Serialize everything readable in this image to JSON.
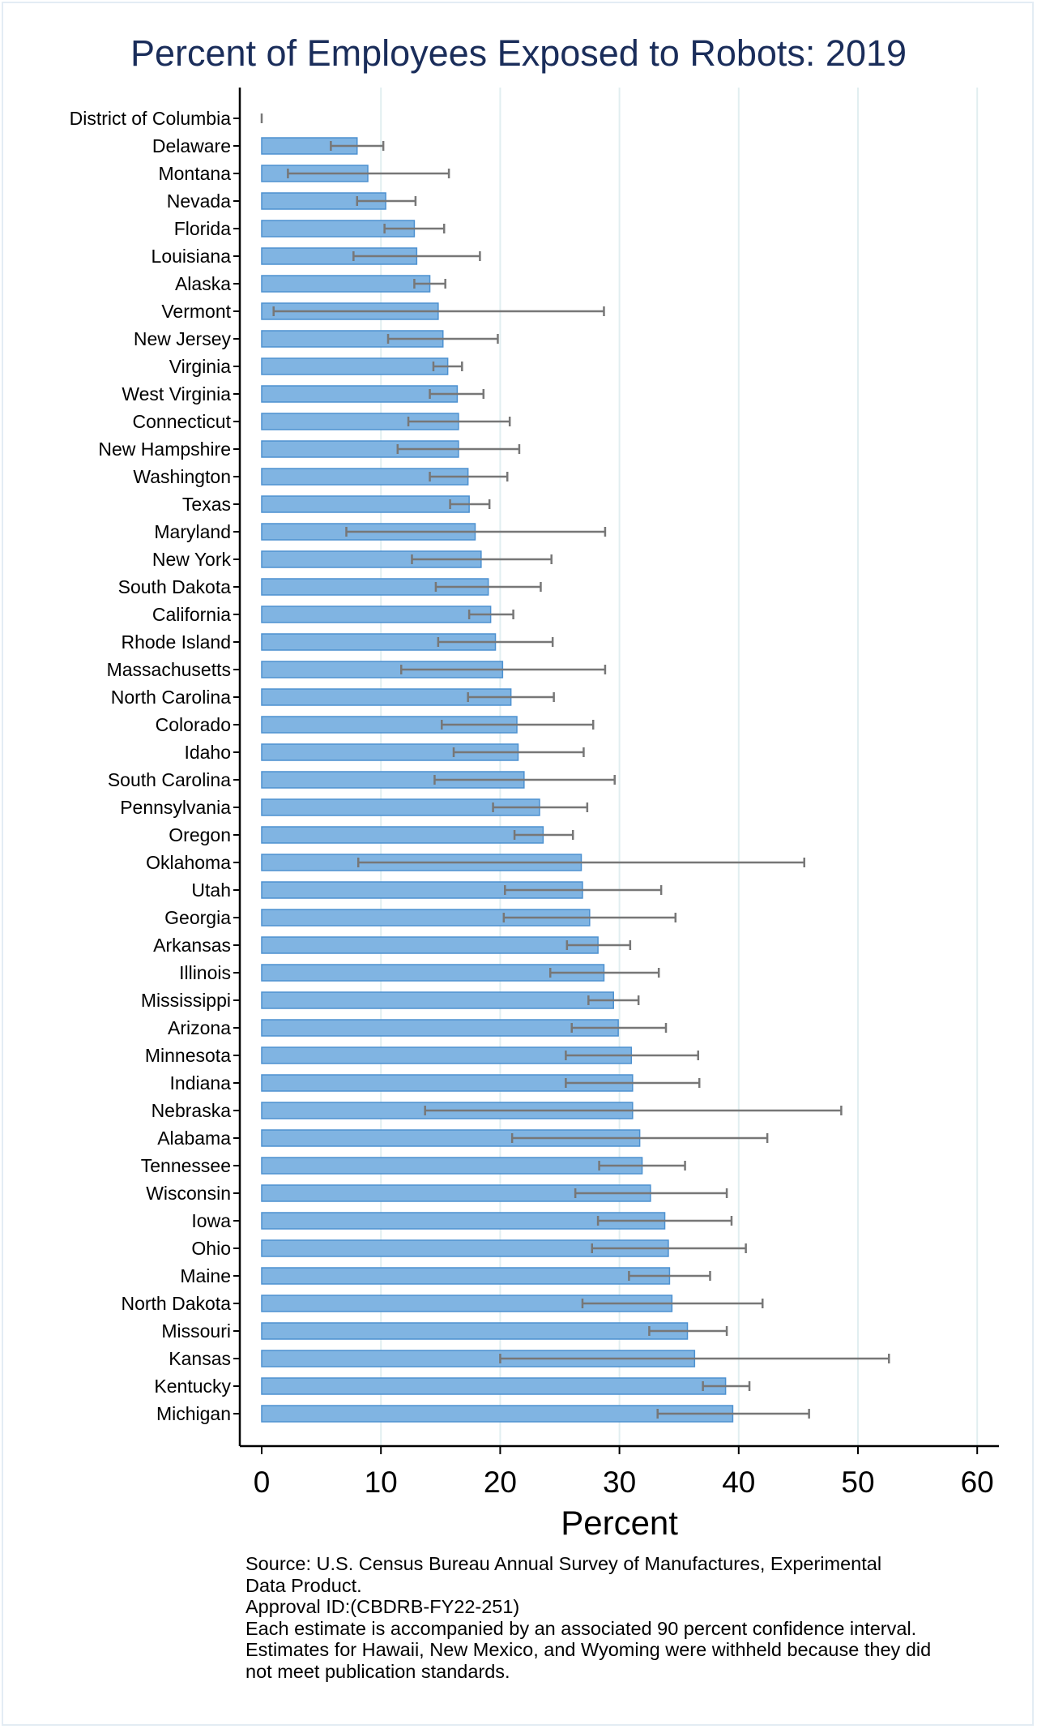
{
  "chart_data": {
    "type": "bar",
    "orientation": "horizontal",
    "title": "Percent of Employees Exposed to Robots: 2019",
    "xlabel": "Percent",
    "ylabel": "",
    "xlim": [
      0,
      60
    ],
    "xticks": [
      0,
      10,
      20,
      30,
      40,
      50,
      60
    ],
    "grid": true,
    "colors": {
      "bar": "#80b4e2",
      "bar_edge": "#4d91d0",
      "error": "#777777",
      "grid": "#e1eef0",
      "title": "#1a2d5a"
    },
    "categories": [
      "District of Columbia",
      "Delaware",
      "Montana",
      "Nevada",
      "Florida",
      "Louisiana",
      "Alaska",
      "Vermont",
      "New Jersey",
      "Virginia",
      "West Virginia",
      "Connecticut",
      "New Hampshire",
      "Washington",
      "Texas",
      "Maryland",
      "New York",
      "South Dakota",
      "California",
      "Rhode Island",
      "Massachusetts",
      "North Carolina",
      "Colorado",
      "Idaho",
      "South Carolina",
      "Pennsylvania",
      "Oregon",
      "Oklahoma",
      "Utah",
      "Georgia",
      "Arkansas",
      "Illinois",
      "Mississippi",
      "Arizona",
      "Minnesota",
      "Indiana",
      "Nebraska",
      "Alabama",
      "Tennessee",
      "Wisconsin",
      "Iowa",
      "Ohio",
      "Maine",
      "North Dakota",
      "Missouri",
      "Kansas",
      "Kentucky",
      "Michigan"
    ],
    "values": [
      0,
      8.0,
      8.9,
      10.4,
      12.8,
      13.0,
      14.1,
      14.8,
      15.2,
      15.6,
      16.4,
      16.5,
      16.5,
      17.3,
      17.4,
      17.9,
      18.4,
      19.0,
      19.2,
      19.6,
      20.2,
      20.9,
      21.4,
      21.5,
      22.0,
      23.3,
      23.6,
      26.8,
      26.9,
      27.5,
      28.2,
      28.7,
      29.5,
      29.9,
      31.0,
      31.1,
      31.1,
      31.7,
      31.9,
      32.6,
      33.8,
      34.1,
      34.2,
      34.4,
      35.7,
      36.3,
      38.9,
      39.5
    ],
    "ci_lower": [
      0,
      5.8,
      2.2,
      8.0,
      10.3,
      7.7,
      12.8,
      1.0,
      10.6,
      14.4,
      14.1,
      12.3,
      11.4,
      14.1,
      15.8,
      7.1,
      12.6,
      14.6,
      17.4,
      14.8,
      11.7,
      17.3,
      15.1,
      16.1,
      14.5,
      19.4,
      21.2,
      8.1,
      20.4,
      20.3,
      25.6,
      24.2,
      27.4,
      26.0,
      25.5,
      25.5,
      13.7,
      21.0,
      28.3,
      26.3,
      28.2,
      27.7,
      30.8,
      26.9,
      32.5,
      20.0,
      37.0,
      33.2
    ],
    "ci_upper": [
      0,
      10.2,
      15.7,
      12.9,
      15.3,
      18.3,
      15.4,
      28.7,
      19.8,
      16.8,
      18.6,
      20.8,
      21.6,
      20.6,
      19.1,
      28.8,
      24.3,
      23.4,
      21.1,
      24.4,
      28.8,
      24.5,
      27.8,
      27.0,
      29.6,
      27.3,
      26.1,
      45.5,
      33.5,
      34.7,
      30.9,
      33.3,
      31.6,
      33.9,
      36.6,
      36.7,
      48.6,
      42.4,
      35.5,
      39.0,
      39.4,
      40.6,
      37.6,
      42.0,
      39.0,
      52.6,
      40.9,
      45.9
    ]
  },
  "notes": [
    "Source: U.S. Census Bureau Annual Survey of Manufactures, Experimental",
    "Data Product.",
    "Approval ID:(CBDRB-FY22-251)",
    "Each estimate is accompanied by an associated 90 percent confidence interval.",
    "Estimates for Hawaii, New Mexico, and Wyoming were withheld because they did",
    "not meet publication standards."
  ]
}
